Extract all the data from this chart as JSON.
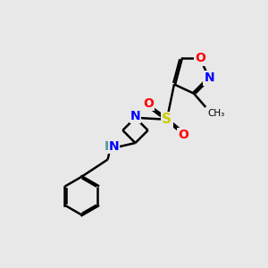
{
  "background_color": "#e8e8e8",
  "bond_color": "#000000",
  "bond_width": 1.8,
  "atom_colors": {
    "N": "#0000ff",
    "O": "#ff0000",
    "S": "#cccc00",
    "C": "#000000",
    "H": "#4a9a9a"
  },
  "font_size": 10,
  "figsize": [
    3.0,
    3.0
  ],
  "dpi": 100
}
